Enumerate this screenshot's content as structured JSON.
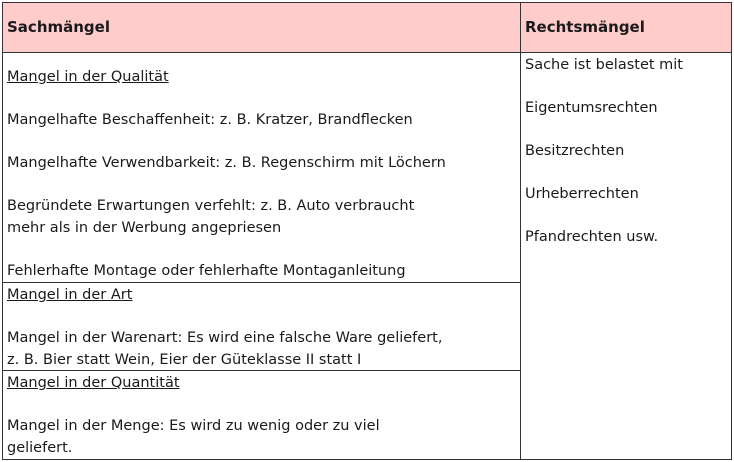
{
  "header": {
    "left": "Sachmängel",
    "right": "Rechtsmängel"
  },
  "sachmaengel": [
    {
      "title": "Mangel in der Qualität",
      "items": [
        [
          "Mangelhafte Beschaffenheit: z. B. Kratzer, Brandflecken"
        ],
        [
          "Mangelhafte Verwendbarkeit: z. B. Regenschirm mit Löchern"
        ],
        [
          "Begründete Erwartungen verfehlt: z. B. Auto verbraucht",
          "mehr als in der Werbung angepriesen"
        ],
        [
          "Fehlerhafte Montage oder fehlerhafte Montaganleitung"
        ]
      ]
    },
    {
      "title": "Mangel in der Art",
      "items": [
        [
          "Mangel in der Warenart: Es wird eine falsche Ware geliefert,",
          "z. B. Bier statt Wein, Eier der Güteklasse II statt I"
        ]
      ]
    },
    {
      "title": "Mangel in der Quantität",
      "items": [
        [
          "Mangel in der Menge: Es wird zu wenig oder zu viel",
          "geliefert."
        ]
      ]
    }
  ],
  "rechtsmaengel": [
    "Sache ist belastet mit",
    "Eigentumsrechten",
    "Besitzrechten",
    "Urheberrechten",
    "Pfandrechten usw."
  ],
  "colors": {
    "header_bg": "#ffcccc",
    "border": "#333333"
  }
}
